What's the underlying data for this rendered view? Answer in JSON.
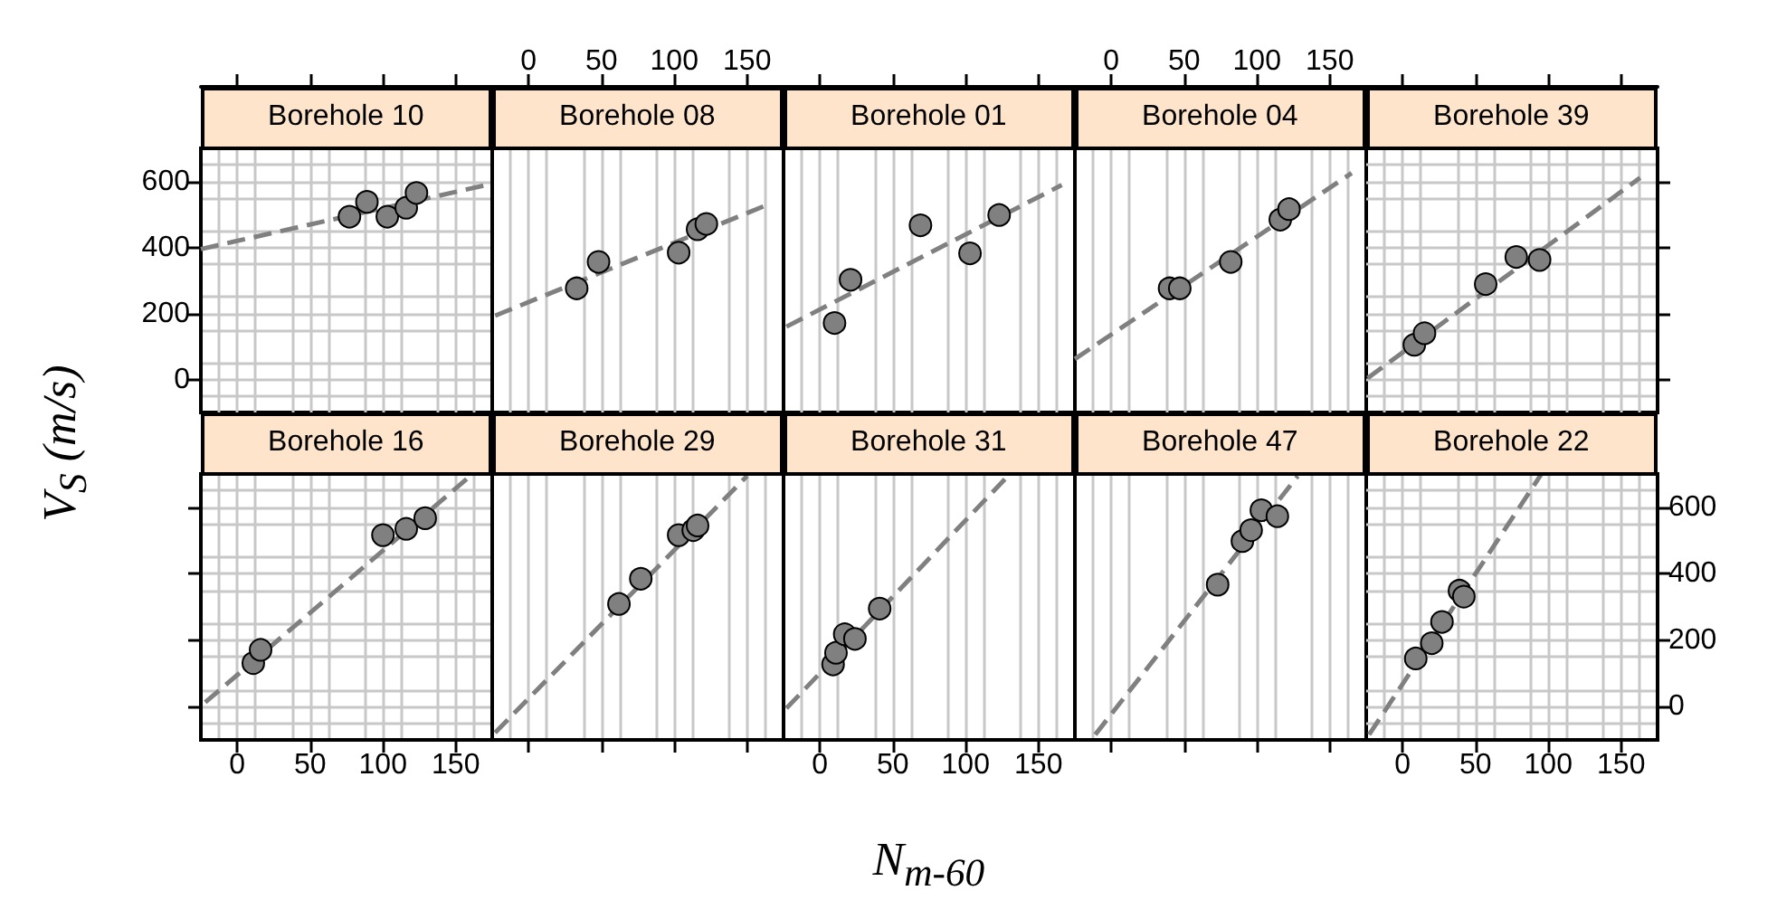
{
  "chart_data": [
    {
      "type": "scatter",
      "title": "Borehole 10",
      "ylabel": "V$_{S}$ (m/s)",
      "xlim": [
        -25,
        175
      ],
      "ylim": [
        -100,
        700
      ],
      "xticks": [
        {
          "value": 0,
          "label": null
        },
        {
          "value": 50,
          "label": null
        },
        {
          "value": 100,
          "label": null
        },
        {
          "value": 150,
          "label": null
        }
      ],
      "yticks": [
        0,
        200,
        400,
        600
      ],
      "tick_labels": "y",
      "grid": true,
      "marker": "circle",
      "series": [
        {
          "type": "line",
          "marker": "none",
          "color": "#808080",
          "line_style": "dashed",
          "x": [
            -25,
            170
          ],
          "values": [
            395,
            588
          ]
        },
        {
          "color": "#808080",
          "x": [
            77,
            89,
            103,
            116,
            123
          ],
          "values": [
            493,
            538,
            493,
            520,
            565
          ]
        }
      ]
    },
    {
      "type": "scatter",
      "title": "Borehole 08",
      "xlim": [
        -25,
        175
      ],
      "ylim": [
        -100,
        700
      ],
      "xticks": [
        0,
        50,
        100,
        150
      ],
      "tick_labels": "x",
      "grid": true,
      "marker": "circle",
      "series": [
        {
          "type": "line",
          "marker": "none",
          "color": "#808080",
          "line_style": "dashed",
          "x": [
            -23,
            165
          ],
          "values": [
            193,
            531
          ]
        },
        {
          "color": "#808080",
          "x": [
            33,
            48,
            103,
            116,
            122
          ],
          "values": [
            276,
            356,
            384,
            455,
            471
          ]
        }
      ]
    },
    {
      "type": "scatter",
      "title": "Borehole 01",
      "xlim": [
        -25,
        175
      ],
      "ylim": [
        -100,
        700
      ],
      "xticks": [
        {
          "value": 0,
          "label": null
        },
        {
          "value": 50,
          "label": null
        },
        {
          "value": 100,
          "label": null
        },
        {
          "value": 150,
          "label": null
        }
      ],
      "tick_labels": false,
      "grid": true,
      "marker": "circle",
      "series": [
        {
          "type": "line",
          "marker": "none",
          "color": "#808080",
          "line_style": "dashed",
          "x": [
            -23,
            166
          ],
          "values": [
            160,
            589
          ]
        },
        {
          "color": "#808080",
          "x": [
            10,
            21,
            69,
            103,
            123
          ],
          "values": [
            171,
            302,
            467,
            382,
            498
          ]
        }
      ]
    },
    {
      "type": "scatter",
      "title": "Borehole 04",
      "xlim": [
        -25,
        175
      ],
      "ylim": [
        -100,
        700
      ],
      "xticks": [
        0,
        50,
        100,
        150
      ],
      "tick_labels": "x",
      "grid": true,
      "marker": "circle",
      "series": [
        {
          "type": "line",
          "marker": "none",
          "color": "#808080",
          "line_style": "dashed",
          "x": [
            -25,
            165
          ],
          "values": [
            62,
            625
          ]
        },
        {
          "color": "#808080",
          "x": [
            40,
            47,
            82,
            116,
            122
          ],
          "values": [
            276,
            276,
            356,
            484,
            516
          ]
        }
      ]
    },
    {
      "type": "scatter",
      "title": "Borehole 39",
      "xlim": [
        -25,
        175
      ],
      "ylim": [
        -100,
        700
      ],
      "xticks": [
        {
          "value": 0,
          "label": null
        },
        {
          "value": 50,
          "label": null
        },
        {
          "value": 100,
          "label": null
        },
        {
          "value": 150,
          "label": null
        }
      ],
      "yticks": [
        {
          "value": 0,
          "label": null
        },
        {
          "value": 200,
          "label": null
        },
        {
          "value": 400,
          "label": null
        },
        {
          "value": 600,
          "label": null
        }
      ],
      "tick_labels": false,
      "grid": true,
      "marker": "circle",
      "series": [
        {
          "type": "line",
          "marker": "none",
          "color": "#808080",
          "line_style": "dashed",
          "x": [
            -24,
            163
          ],
          "values": [
            4,
            611
          ]
        },
        {
          "color": "#808080",
          "x": [
            8,
            15,
            57,
            78,
            94
          ],
          "values": [
            105,
            140,
            289,
            371,
            362
          ]
        }
      ]
    },
    {
      "type": "scatter",
      "title": "Borehole 16",
      "xlim": [
        -25,
        175
      ],
      "ylim": [
        -100,
        700
      ],
      "xticks": [
        0,
        50,
        100,
        150
      ],
      "yticks": [
        {
          "value": 0,
          "label": null
        },
        {
          "value": 200,
          "label": null
        },
        {
          "value": 400,
          "label": null
        },
        {
          "value": 600,
          "label": null
        }
      ],
      "tick_labels": "x",
      "grid": true,
      "marker": "circle",
      "series": [
        {
          "type": "line",
          "marker": "none",
          "color": "#808080",
          "line_style": "dashed",
          "x": [
            -22,
            161
          ],
          "values": [
            13,
            698
          ]
        },
        {
          "color": "#808080",
          "x": [
            11,
            16,
            100,
            116,
            129
          ],
          "values": [
            131,
            171,
            516,
            535,
            567
          ]
        }
      ]
    },
    {
      "type": "scatter",
      "title": "Borehole 29",
      "xlim": [
        -25,
        175
      ],
      "ylim": [
        -100,
        700
      ],
      "xticks": [
        {
          "value": 0,
          "label": null
        },
        {
          "value": 50,
          "label": null
        },
        {
          "value": 100,
          "label": null
        },
        {
          "value": 150,
          "label": null
        }
      ],
      "tick_labels": false,
      "grid": true,
      "marker": "circle",
      "series": [
        {
          "type": "line",
          "marker": "none",
          "color": "#808080",
          "line_style": "dashed",
          "x": [
            -23,
            150
          ],
          "values": [
            -78,
            694
          ]
        },
        {
          "color": "#808080",
          "x": [
            62,
            77,
            103,
            113,
            116
          ],
          "values": [
            309,
            385,
            516,
            531,
            545
          ]
        }
      ]
    },
    {
      "type": "scatter",
      "title": "Borehole 31",
      "xlabel": "N$_{m-60}$",
      "xlim": [
        -25,
        175
      ],
      "ylim": [
        -100,
        700
      ],
      "xticks": [
        0,
        50,
        100,
        150
      ],
      "tick_labels": "x",
      "grid": true,
      "marker": "circle",
      "series": [
        {
          "type": "line",
          "marker": "none",
          "color": "#808080",
          "line_style": "dashed",
          "x": [
            -23,
            129
          ],
          "values": [
            -5,
            694
          ]
        },
        {
          "color": "#808080",
          "x": [
            9,
            11,
            17,
            24,
            41
          ],
          "values": [
            127,
            162,
            218,
            204,
            295
          ]
        }
      ]
    },
    {
      "type": "scatter",
      "title": "Borehole 47",
      "xlim": [
        -25,
        175
      ],
      "ylim": [
        -100,
        700
      ],
      "xticks": [
        {
          "value": 0,
          "label": null
        },
        {
          "value": 50,
          "label": null
        },
        {
          "value": 100,
          "label": null
        },
        {
          "value": 150,
          "label": null
        }
      ],
      "tick_labels": false,
      "grid": true,
      "marker": "circle",
      "series": [
        {
          "type": "line",
          "marker": "none",
          "color": "#808080",
          "line_style": "dashed",
          "x": [
            -11,
            128
          ],
          "values": [
            -84,
            694
          ]
        },
        {
          "color": "#808080",
          "x": [
            73,
            90,
            96,
            103,
            114
          ],
          "values": [
            367,
            498,
            531,
            591,
            573
          ]
        }
      ]
    },
    {
      "type": "scatter",
      "title": "Borehole 22",
      "xlim": [
        -25,
        175
      ],
      "ylim": [
        -100,
        700
      ],
      "xticks": [
        0,
        50,
        100,
        150
      ],
      "yticks": [
        0,
        200,
        400,
        600
      ],
      "grid": true,
      "marker": "circle",
      "series": [
        {
          "type": "line",
          "marker": "none",
          "color": "#808080",
          "line_style": "dashed",
          "x": [
            -23,
            95
          ],
          "values": [
            -84,
            698
          ]
        },
        {
          "color": "#808080",
          "x": [
            9,
            20,
            27,
            39,
            42
          ],
          "values": [
            145,
            191,
            255,
            349,
            331
          ]
        }
      ]
    }
  ]
}
